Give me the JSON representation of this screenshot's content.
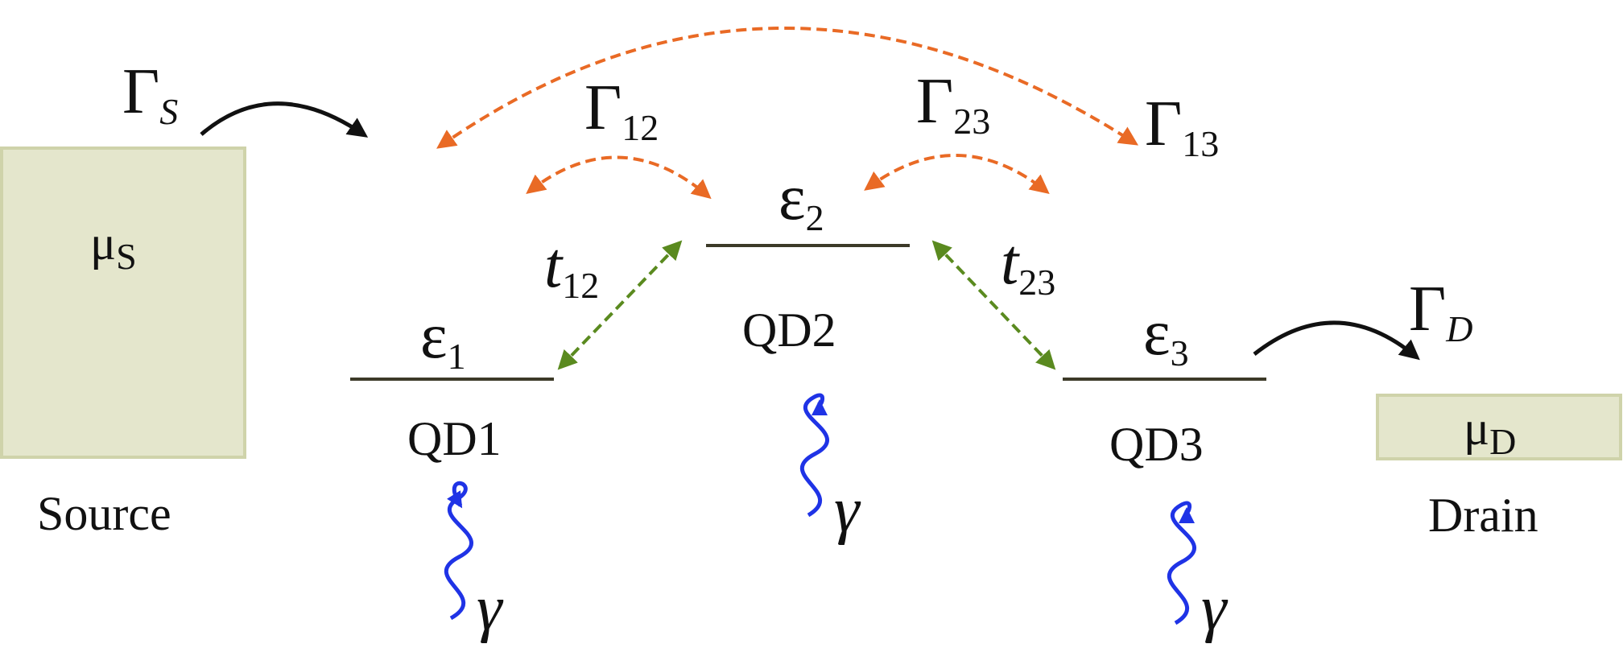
{
  "source": {
    "mu_symbol": "μ",
    "mu_subscript": "S",
    "label": "Source"
  },
  "drain": {
    "mu_symbol": "μ",
    "mu_subscript": "D",
    "label": "Drain"
  },
  "dots": [
    {
      "energy_symbol": "ε",
      "energy_subscript": "1",
      "label": "QD1"
    },
    {
      "energy_symbol": "ε",
      "energy_subscript": "2",
      "label": "QD2"
    },
    {
      "energy_symbol": "ε",
      "energy_subscript": "3",
      "label": "QD3"
    }
  ],
  "couplings": {
    "gamma_source": {
      "symbol": "Γ",
      "subscript": "S"
    },
    "gamma_drain": {
      "symbol": "Γ",
      "subscript": "D"
    },
    "gamma_12": {
      "symbol": "Γ",
      "subscript": "12"
    },
    "gamma_23": {
      "symbol": "Γ",
      "subscript": "23"
    },
    "gamma_13": {
      "symbol": "Γ",
      "subscript": "13"
    },
    "t_12": {
      "symbol": "t",
      "subscript": "12"
    },
    "t_23": {
      "symbol": "t",
      "subscript": "23"
    }
  },
  "photon_symbol": "γ",
  "colors": {
    "reservoir_fill": "#e4e6cc",
    "reservoir_border": "#cfd3aa",
    "collective_decay": "#e96a25",
    "tunneling": "#5a8a1f",
    "photon": "#1f33e6",
    "lead_transfer": "#111111"
  }
}
